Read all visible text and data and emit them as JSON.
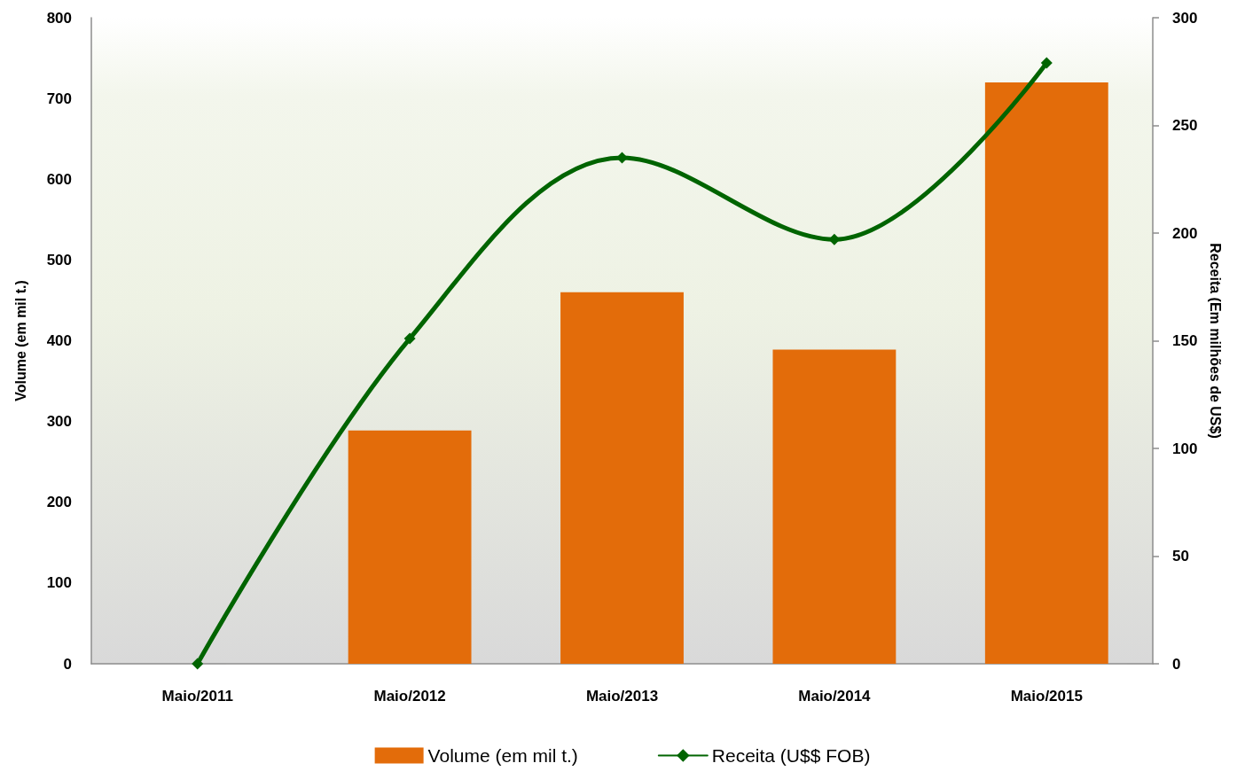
{
  "chart_data": {
    "type": "bar",
    "ylabel": "Volume (em mil t.)",
    "y2label": "Receita (Em milhões de US$)",
    "categories": [
      "Maio/2011",
      "Maio/2012",
      "Maio/2013",
      "Maio/2014",
      "Maio/2015"
    ],
    "series": [
      {
        "name": "Volume (em mil t.)",
        "type": "bar",
        "color": "#e36c0a",
        "values": [
          0,
          289,
          460,
          389,
          720
        ]
      },
      {
        "name": "Receita (U$$ FOB)",
        "type": "line",
        "axis": "y2",
        "color": "#006400",
        "values": [
          0,
          151,
          235,
          197,
          279
        ]
      }
    ],
    "ylim": [
      0,
      800
    ],
    "yticks": [
      0,
      100,
      200,
      300,
      400,
      500,
      600,
      700,
      800
    ],
    "y2lim": [
      0,
      300
    ],
    "y2ticks": [
      0,
      50,
      100,
      150,
      200,
      250,
      300
    ],
    "marker": "diamond",
    "grid": false,
    "legend": "bottom"
  }
}
